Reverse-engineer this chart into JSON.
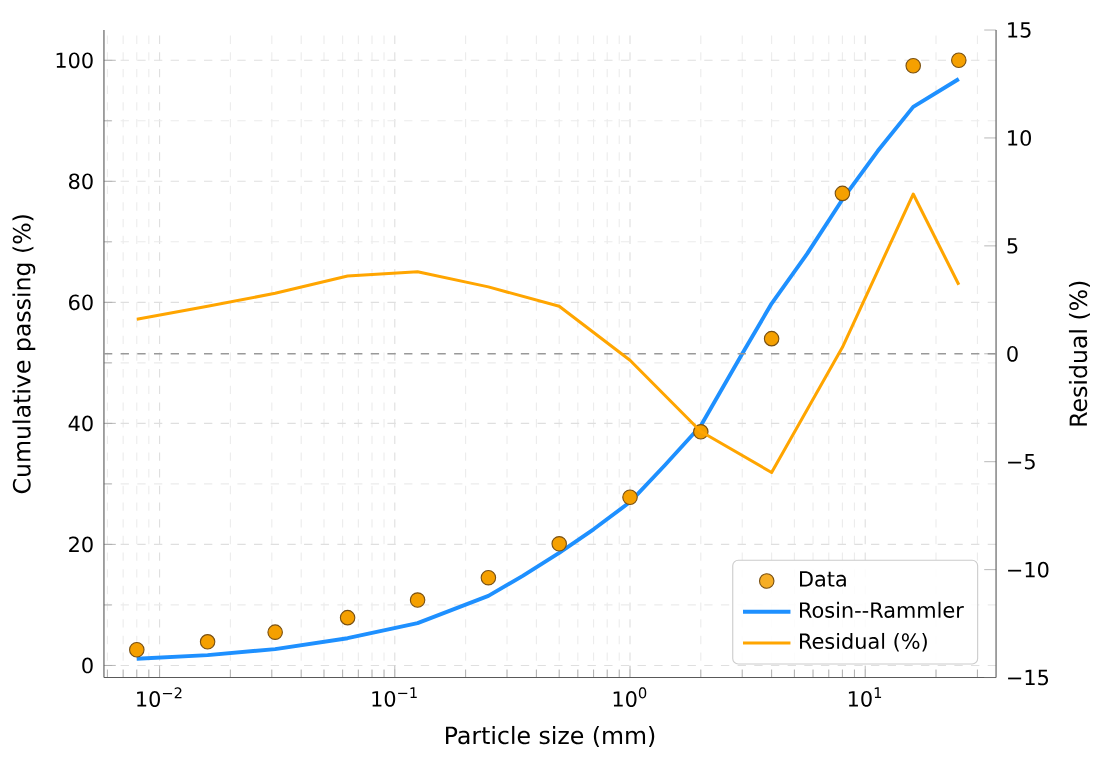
{
  "chart_data": {
    "type": "line",
    "xlabel": "Particle size (mm)",
    "ylabel": "Cumulative passing (%)",
    "y2label": "Residual (%)",
    "log": "x",
    "grid": true,
    "legend": "bottom right",
    "xlim": [
      0.0058,
      36
    ],
    "ylim": [
      -2,
      105
    ],
    "y2lim": [
      -15,
      15
    ],
    "xticks": [
      {
        "value": 0.01,
        "label": "10$^{−2}$"
      },
      {
        "value": 0.1,
        "label": "10$^{−1}$"
      },
      {
        "value": 1,
        "label": "10$^{0}$"
      },
      {
        "value": 10,
        "label": "10$^{1}$"
      }
    ],
    "yticks": [
      0,
      20,
      40,
      60,
      80,
      100
    ],
    "y2ticks": [
      {
        "value": -15,
        "label": "−15"
      },
      {
        "value": -10,
        "label": "−10"
      },
      {
        "value": -5,
        "label": "−5"
      },
      0,
      5,
      10,
      15
    ],
    "ref_lines": [
      {
        "axis": "y2",
        "value": 0,
        "color": "#999999",
        "line_style": "dashed"
      }
    ],
    "series": [
      {
        "name": "Data",
        "type": "scatter",
        "marker": "circle",
        "color": "#f5a000",
        "x": [
          0.008,
          0.016,
          0.031,
          0.063,
          0.125,
          0.25,
          0.5,
          1,
          2,
          4,
          8,
          16,
          25
        ],
        "values": [
          2.6,
          3.9,
          5.5,
          7.9,
          10.8,
          14.5,
          20.1,
          27.8,
          38.6,
          54.0,
          78.0,
          99.1,
          100
        ]
      },
      {
        "name": "Rosin--Rammler",
        "color": "#1e90ff",
        "x": [
          0.008,
          0.016,
          0.031,
          0.063,
          0.125,
          0.25,
          0.35,
          0.5,
          0.7,
          1,
          1.4,
          2,
          3,
          4,
          5.66,
          8,
          11.3,
          16,
          25
        ],
        "values": [
          1.1,
          1.7,
          2.7,
          4.5,
          7,
          11.5,
          14.8,
          18.6,
          22.5,
          27,
          33,
          39.6,
          51.5,
          59.8,
          68,
          77,
          85,
          92.3,
          96.9
        ]
      },
      {
        "name": "Residual (%)",
        "axis": "y2",
        "color": "#ffa500",
        "x": [
          0.008,
          0.016,
          0.031,
          0.063,
          0.125,
          0.25,
          0.5,
          1,
          2,
          4,
          8,
          16,
          25
        ],
        "values": [
          1.6,
          2.2,
          2.8,
          3.6,
          3.8,
          3.1,
          2.2,
          -0.3,
          -3.6,
          -5.5,
          0.3,
          7.4,
          3.2
        ]
      }
    ]
  }
}
